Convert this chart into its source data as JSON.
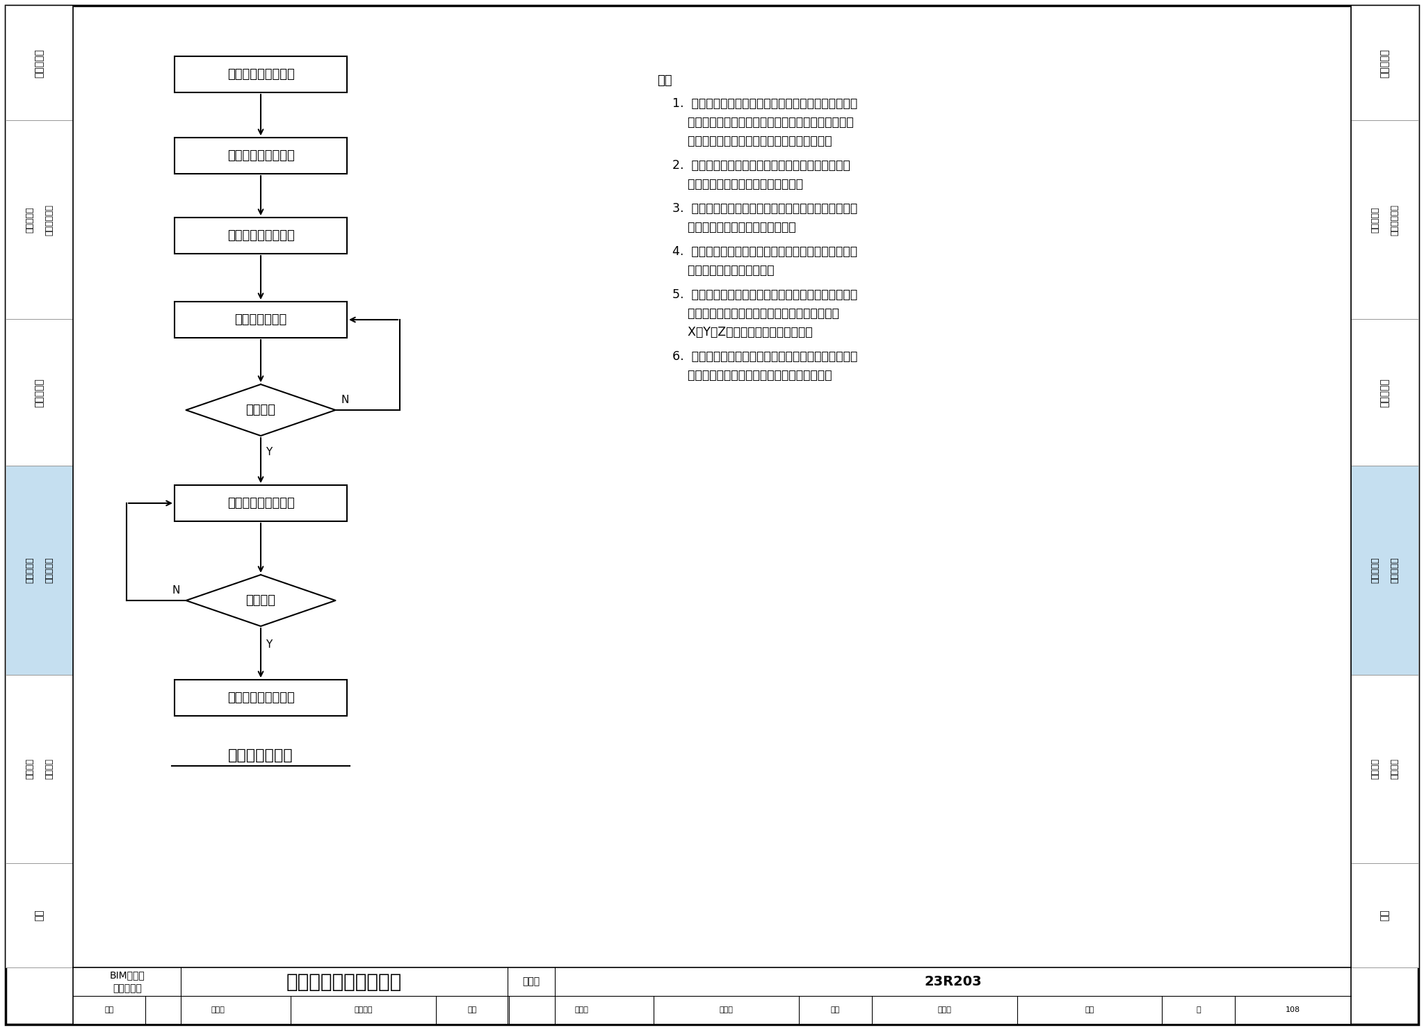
{
  "bg_color": "#ffffff",
  "border_color": "#000000",
  "light_blue": "#c5dff0",
  "sidebar_labels": [
    {
      "lines": [
        "模块化机组"
      ],
      "dual": false,
      "color": "#ffffff"
    },
    {
      "lines": [
        "机房附属设备",
        "和管道配件"
      ],
      "dual": true,
      "color": "#ffffff"
    },
    {
      "lines": [
        "整装式机房"
      ],
      "dual": false,
      "color": "#ffffff"
    },
    {
      "lines": [
        "机房装配式",
        "建造与安装"
      ],
      "dual": true,
      "color": "#c5dff0"
    },
    {
      "lines": [
        "机房典型",
        "工程实例"
      ],
      "dual": true,
      "color": "#ffffff"
    },
    {
      "lines": [
        "附录"
      ],
      "dual": false,
      "color": "#ffffff"
    }
  ],
  "flowchart_items": [
    {
      "text": "模型及相关资料接受",
      "type": "rect"
    },
    {
      "text": "深化设计及模型交底",
      "type": "rect"
    },
    {
      "text": "现场数据实测及录入",
      "type": "rect"
    },
    {
      "text": "管道及模块拆分",
      "type": "rect"
    },
    {
      "text": "碰撞检测",
      "type": "diamond"
    },
    {
      "text": "导出并生成加工图纸",
      "type": "rect"
    },
    {
      "text": "审核确认",
      "type": "diamond"
    },
    {
      "text": "加工图纸及模型移交",
      "type": "rect"
    }
  ],
  "flowchart_title": "装配化设计流程",
  "note_intro": "注：",
  "notes": [
    [
      "1.  机房装配化设计开始前宜对前期深化模型成果进行检",
      "    查，查看模型是否存在碰撞或其他不合理之处，如发",
      "    现问题应及时反馈至深化建模人员进行调整；"
    ],
    [
      "2.  机房装配化设计开始前宜先对机房土建结构进行复",
      "    测，并根据复测结果调整设计方案；"
    ],
    [
      "3.  测量工具或仪器在使用前应仔细检查，避免测量过程",
      "    中出现设备故障，影响测量效果；"
    ],
    [
      "4.  机房装配化设计时应考虑支架的安装位置，管道连接",
      "    点应避开支架安装的位置；"
    ],
    [
      "5.  在进行管道及模块分段时，宜根据机房设备的布局及",
      "    管线的走向在合适的位置预留现场调整段，消除",
      "    X、Y、Z三个方向的累积安装误差；"
    ],
    [
      "6.  装配化设计不得随意修改或调整管道原有大小、走向",
      "    和位置，并满足相关设计规范和标准的要求。"
    ]
  ],
  "footer_bim1": "BIM深化及",
  "footer_bim2": "装配化设计",
  "footer_main_title": "机房装配化设计（一）",
  "footer_tuji_label": "图集号",
  "footer_tuji_num": "23R203",
  "footer_row2": [
    "审核",
    "陈晓文",
    "方生态文",
    "校对",
    "朱进林",
    "小时行",
    "设计",
    "陈翰秩",
    "躲秋",
    "页",
    "108"
  ],
  "section_props": [
    1.1,
    1.9,
    1.4,
    2.0,
    1.8,
    1.0
  ]
}
